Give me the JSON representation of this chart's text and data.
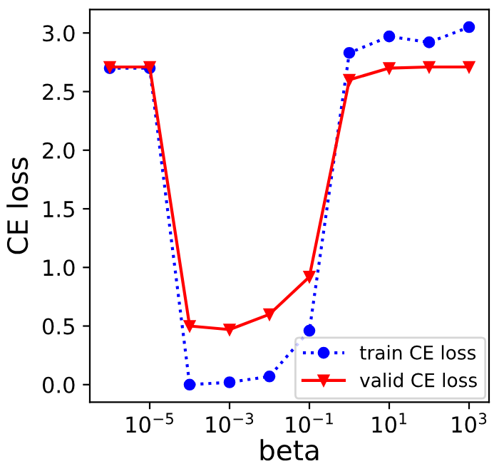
{
  "chart_data": {
    "type": "line",
    "xlabel": "beta",
    "ylabel": "CE loss",
    "log": "x",
    "x": [
      1e-06,
      1e-05,
      0.0001,
      0.001,
      0.01,
      0.1,
      1,
      10,
      100,
      1000
    ],
    "series": [
      {
        "name": "train CE loss",
        "color": "#0000ff",
        "marker": "circle",
        "line_style": "dotted",
        "values": [
          2.7,
          2.7,
          0.0,
          0.02,
          0.07,
          0.46,
          2.83,
          2.97,
          2.92,
          3.05
        ]
      },
      {
        "name": "valid CE loss",
        "color": "#ff0000",
        "marker": "triangle",
        "line_style": "solid",
        "values": [
          2.71,
          2.71,
          0.5,
          0.47,
          0.6,
          0.92,
          2.6,
          2.7,
          2.71,
          2.71
        ]
      }
    ],
    "xlim": [
      3.16e-07,
      3162
    ],
    "xticks": [
      {
        "value": 1e-05,
        "label": "10$^{−5}$"
      },
      {
        "value": 0.001,
        "label": "10$^{−3}$"
      },
      {
        "value": 0.1,
        "label": "10$^{−1}$"
      },
      {
        "value": 10,
        "label": "10$^{1}$"
      },
      {
        "value": 1000,
        "label": "10$^{3}$"
      }
    ],
    "ylim": [
      -0.15,
      3.2
    ],
    "yticks": [
      {
        "value": 0,
        "label": "0.0"
      },
      0.5,
      {
        "value": 1,
        "label": "1.0"
      },
      1.5,
      {
        "value": 2,
        "label": "2.0"
      },
      2.5,
      {
        "value": 3,
        "label": "3.0"
      }
    ],
    "grid": false,
    "legend": "bottom right"
  }
}
